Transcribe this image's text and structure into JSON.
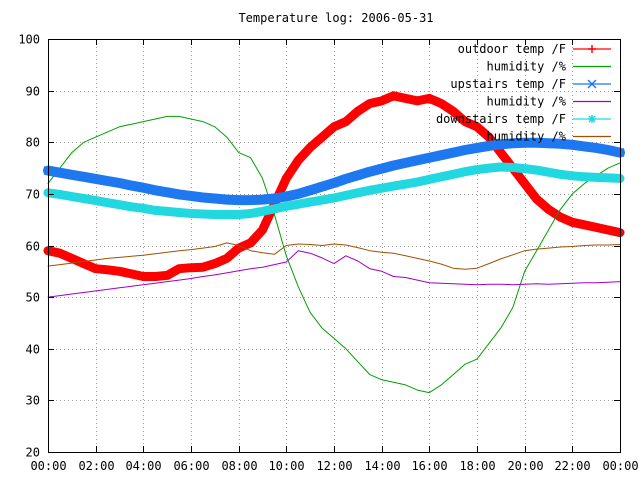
{
  "chart_data": {
    "type": "line",
    "title": "Temperature log: 2006-05-31",
    "xlabel": "",
    "ylabel": "",
    "grid": true,
    "legend_position": "top-right",
    "xlim": [
      0,
      24
    ],
    "ylim": [
      20,
      100
    ],
    "x_ticks": [
      {
        "value": 0,
        "label": "00:00"
      },
      {
        "value": 2,
        "label": "02:00"
      },
      {
        "value": 4,
        "label": "04:00"
      },
      {
        "value": 6,
        "label": "06:00"
      },
      {
        "value": 8,
        "label": "08:00"
      },
      {
        "value": 10,
        "label": "10:00"
      },
      {
        "value": 12,
        "label": "12:00"
      },
      {
        "value": 14,
        "label": "14:00"
      },
      {
        "value": 16,
        "label": "16:00"
      },
      {
        "value": 18,
        "label": "18:00"
      },
      {
        "value": 20,
        "label": "20:00"
      },
      {
        "value": 22,
        "label": "22:00"
      },
      {
        "value": 24,
        "label": "00:00"
      }
    ],
    "y_ticks": [
      {
        "value": 20,
        "label": "20"
      },
      {
        "value": 30,
        "label": "30"
      },
      {
        "value": 40,
        "label": "40"
      },
      {
        "value": 50,
        "label": "50"
      },
      {
        "value": 60,
        "label": "60"
      },
      {
        "value": 70,
        "label": "70"
      },
      {
        "value": 80,
        "label": "80"
      },
      {
        "value": 90,
        "label": "90"
      },
      {
        "value": 100,
        "label": "100"
      }
    ],
    "series": [
      {
        "name": "outdoor temp /F",
        "color": "#ff0000",
        "marker": "plus",
        "x": [
          0,
          0.5,
          1,
          1.5,
          2,
          2.5,
          3,
          3.5,
          4,
          4.5,
          5,
          5.5,
          6,
          6.5,
          7,
          7.5,
          8,
          8.5,
          9,
          9.5,
          10,
          10.5,
          11,
          11.5,
          12,
          12.5,
          13,
          13.5,
          14,
          14.5,
          15,
          15.5,
          16,
          16.5,
          17,
          17.5,
          18,
          18.5,
          19,
          19.5,
          20,
          20.5,
          21,
          21.5,
          22,
          22.5,
          23,
          23.5,
          24
        ],
        "values": [
          59,
          58.5,
          57.5,
          56.5,
          55.5,
          55.3,
          55,
          54.5,
          54,
          54,
          54.2,
          55.5,
          55.7,
          55.8,
          56.5,
          57.5,
          59.5,
          60.5,
          63,
          68,
          73,
          76.5,
          79,
          81,
          83,
          84,
          86,
          87.5,
          88,
          89,
          88.5,
          88,
          88.5,
          87.5,
          86,
          84,
          83,
          81,
          78,
          75,
          72,
          69,
          67,
          65.5,
          64.5,
          64,
          63.5,
          63,
          62.5
        ]
      },
      {
        "name": "humidity /%",
        "color": "#00a000",
        "marker": "none",
        "x": [
          0,
          0.5,
          1,
          1.5,
          2,
          2.5,
          3,
          3.5,
          4,
          4.5,
          5,
          5.5,
          6,
          6.5,
          7,
          7.5,
          8,
          8.5,
          9,
          9.5,
          10,
          10.5,
          11,
          11.5,
          12,
          12.5,
          13,
          13.5,
          14,
          14.5,
          15,
          15.5,
          16,
          16.5,
          17,
          17.5,
          18,
          18.5,
          19,
          19.5,
          20,
          20.5,
          21,
          21.5,
          22,
          22.5,
          23,
          23.5,
          24
        ],
        "values": [
          72,
          75,
          78,
          80,
          81,
          82,
          83,
          83.5,
          84,
          84.5,
          85,
          85,
          84.5,
          84,
          83,
          81,
          78,
          77,
          73,
          66,
          58,
          52,
          47,
          44,
          42,
          40,
          37.5,
          35,
          34,
          33.5,
          33,
          32,
          31.5,
          33,
          35,
          37,
          38,
          41,
          44,
          48,
          55,
          59,
          63,
          67,
          70,
          72,
          73.5,
          75,
          76
        ]
      },
      {
        "name": "upstairs temp /F",
        "color": "#1e78f0",
        "marker": "cross",
        "x": [
          0,
          0.5,
          1,
          1.5,
          2,
          2.5,
          3,
          3.5,
          4,
          4.5,
          5,
          5.5,
          6,
          6.5,
          7,
          7.5,
          8,
          8.5,
          9,
          9.5,
          10,
          10.5,
          11,
          11.5,
          12,
          12.5,
          13,
          13.5,
          14,
          14.5,
          15,
          15.5,
          16,
          16.5,
          17,
          17.5,
          18,
          18.5,
          19,
          19.5,
          20,
          20.5,
          21,
          21.5,
          22,
          22.5,
          23,
          23.5,
          24
        ],
        "values": [
          74.5,
          74.1,
          73.7,
          73.3,
          72.9,
          72.5,
          72.1,
          71.6,
          71.2,
          70.7,
          70.3,
          69.9,
          69.6,
          69.3,
          69.1,
          68.9,
          68.8,
          68.8,
          68.9,
          69.1,
          69.5,
          70,
          70.7,
          71.4,
          72.1,
          72.9,
          73.6,
          74.3,
          74.9,
          75.5,
          76,
          76.5,
          77,
          77.5,
          78,
          78.5,
          78.9,
          79.3,
          79.6,
          79.8,
          79.9,
          79.9,
          79.8,
          79.7,
          79.5,
          79.2,
          78.9,
          78.5,
          78
        ]
      },
      {
        "name": "humidity /%",
        "color": "#a000c8",
        "marker": "none",
        "x": [
          0,
          0.5,
          1,
          1.5,
          2,
          2.5,
          3,
          3.5,
          4,
          4.5,
          5,
          5.5,
          6,
          6.5,
          7,
          7.5,
          8,
          8.5,
          9,
          9.5,
          10,
          10.5,
          11,
          11.5,
          12,
          12.5,
          13,
          13.5,
          14,
          14.5,
          15,
          15.5,
          16,
          16.5,
          17,
          17.5,
          18,
          18.5,
          19,
          19.5,
          20,
          20.5,
          21,
          21.5,
          22,
          22.5,
          23,
          23.5,
          24
        ],
        "values": [
          50,
          50.3,
          50.6,
          50.9,
          51.2,
          51.5,
          51.8,
          52.1,
          52.4,
          52.7,
          53,
          53.3,
          53.6,
          54,
          54.3,
          54.7,
          55.1,
          55.5,
          55.8,
          56.3,
          56.8,
          59,
          58.5,
          57.6,
          56.5,
          58,
          57,
          55.5,
          55,
          54,
          53.8,
          53.3,
          52.8,
          52.7,
          52.6,
          52.5,
          52.4,
          52.5,
          52.5,
          52.4,
          52.5,
          52.6,
          52.5,
          52.6,
          52.7,
          52.8,
          52.8,
          52.9,
          53
        ]
      },
      {
        "name": "downstairs temp /F",
        "color": "#22d8e0",
        "marker": "star",
        "x": [
          0,
          0.5,
          1,
          1.5,
          2,
          2.5,
          3,
          3.5,
          4,
          4.5,
          5,
          5.5,
          6,
          6.5,
          7,
          7.5,
          8,
          8.5,
          9,
          9.5,
          10,
          10.5,
          11,
          11.5,
          12,
          12.5,
          13,
          13.5,
          14,
          14.5,
          15,
          15.5,
          16,
          16.5,
          17,
          17.5,
          18,
          18.5,
          19,
          19.5,
          20,
          20.5,
          21,
          21.5,
          22,
          22.5,
          23,
          23.5,
          24
        ],
        "values": [
          70.2,
          69.9,
          69.5,
          69.1,
          68.7,
          68.3,
          67.9,
          67.5,
          67.2,
          66.8,
          66.6,
          66.4,
          66.2,
          66.1,
          66,
          66,
          66,
          66.2,
          66.6,
          67.1,
          67.6,
          68,
          68.4,
          68.8,
          69.2,
          69.7,
          70.2,
          70.7,
          71.1,
          71.5,
          71.9,
          72.3,
          72.8,
          73.3,
          73.8,
          74.3,
          74.7,
          75,
          75.2,
          75.1,
          74.9,
          74.6,
          74.2,
          73.8,
          73.5,
          73.3,
          73.2,
          73.1,
          73
        ]
      },
      {
        "name": "humidity /%",
        "color": "#a05000",
        "marker": "none",
        "x": [
          0,
          0.5,
          1,
          1.5,
          2,
          2.5,
          3,
          3.5,
          4,
          4.5,
          5,
          5.5,
          6,
          6.5,
          7,
          7.5,
          8,
          8.5,
          9,
          9.5,
          10,
          10.5,
          11,
          11.5,
          12,
          12.5,
          13,
          13.5,
          14,
          14.5,
          15,
          15.5,
          16,
          16.5,
          17,
          17.5,
          18,
          18.5,
          19,
          19.5,
          20,
          20.5,
          21,
          21.5,
          22,
          22.5,
          23,
          23.5,
          24
        ],
        "values": [
          56,
          56.3,
          56.6,
          56.9,
          57.2,
          57.5,
          57.7,
          57.9,
          58.1,
          58.4,
          58.7,
          59,
          59.2,
          59.5,
          59.8,
          60.5,
          60,
          59,
          58.6,
          58.3,
          60,
          60.3,
          60.2,
          60,
          60.3,
          60.1,
          59.6,
          59,
          58.7,
          58.5,
          58,
          57.5,
          57,
          56.4,
          55.6,
          55.4,
          55.6,
          56.5,
          57.4,
          58.2,
          59,
          59.3,
          59.5,
          59.7,
          59.8,
          60,
          60.1,
          60.1,
          60.2
        ]
      }
    ]
  }
}
